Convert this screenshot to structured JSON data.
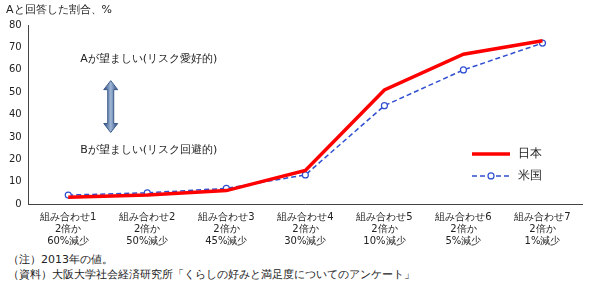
{
  "chart_data": {
    "type": "line",
    "ylabel": "Aと回答した割合、%",
    "categories": [
      "組み合わせ1\n2倍か\n60%減少",
      "組み合わせ2\n2倍か\n50%減少",
      "組み合わせ3\n2倍か\n45%減少",
      "組み合わせ4\n2倍か\n30%減少",
      "組み合わせ5\n2倍か\n10%減少",
      "組み合わせ6\n2倍か\n5%減少",
      "組み合わせ7\n2倍か\n1%減少"
    ],
    "series": [
      {
        "name": "日本",
        "color": "#ff0000",
        "line_style": "solid",
        "marker": "none",
        "values": [
          3,
          4,
          6,
          15,
          51,
          67,
          73
        ]
      },
      {
        "name": "米国",
        "color": "#2f4fd0",
        "line_style": "dashed",
        "marker": "circle",
        "values": [
          4,
          5,
          7,
          13,
          44,
          60,
          72
        ]
      }
    ],
    "ylim": [
      0,
      80
    ],
    "yticks": [
      0,
      10,
      20,
      30,
      40,
      50,
      60,
      70,
      80
    ],
    "grid": false,
    "legend": "right",
    "annotations": [
      "Aが望ましい(リスク愛好的)",
      "Bが望ましい(リスク回避的)"
    ],
    "notes": [
      "（注）2013年の値。",
      "（資料）大阪大学社会経済研究所「くらしの好みと満足度についてのアンケート」"
    ]
  }
}
